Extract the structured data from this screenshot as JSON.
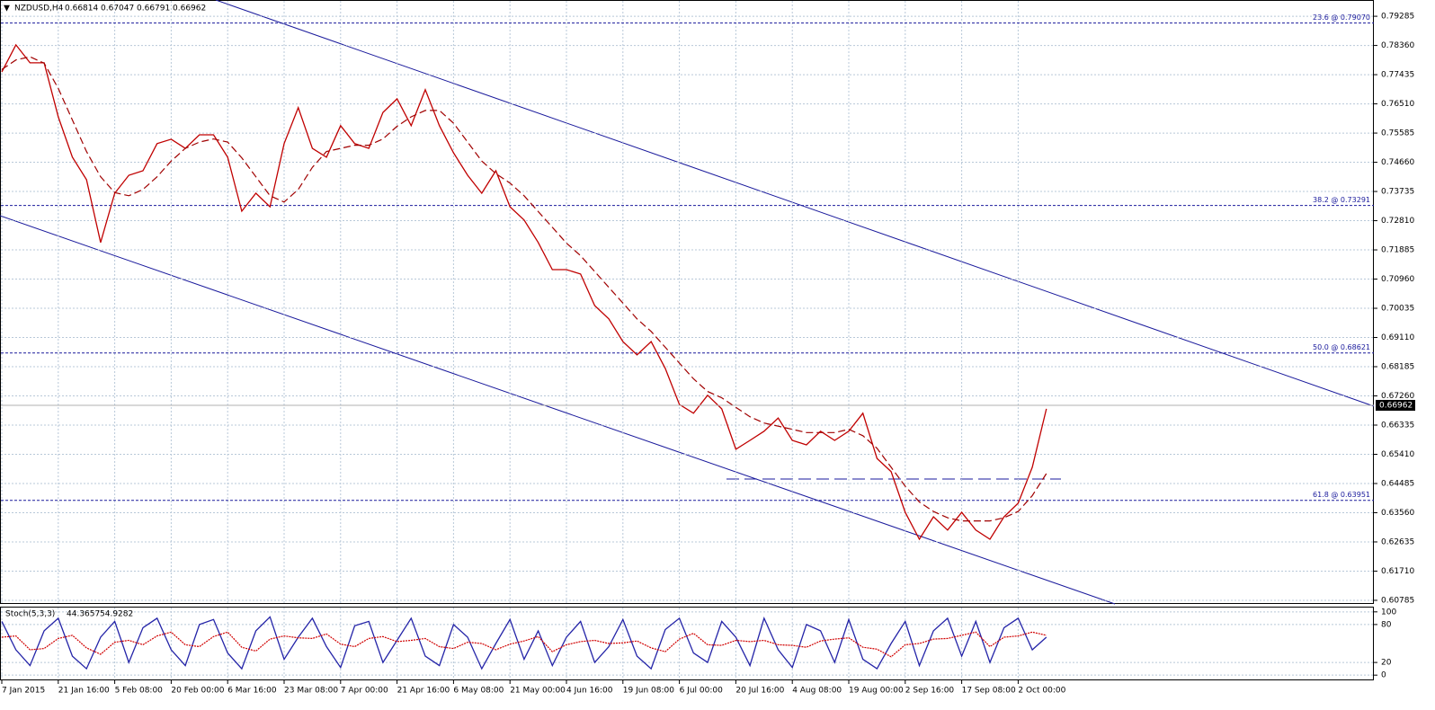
{
  "chart_data": [
    {
      "type": "line",
      "title": "NZDUSD,H4",
      "ohlc": [
        0.66814,
        0.67047,
        0.66791,
        0.66962
      ],
      "categories": [
        "7 Jan 2015",
        null,
        null,
        null,
        "21 Jan 16:00",
        null,
        null,
        null,
        "5 Feb 08:00",
        null,
        null,
        null,
        "20 Feb 00:00",
        null,
        null,
        null,
        "6 Mar 16:00",
        null,
        null,
        null,
        "23 Mar 08:00",
        null,
        null,
        null,
        "7 Apr 00:00",
        null,
        null,
        null,
        "21 Apr 16:00",
        null,
        null,
        null,
        "6 May 08:00",
        null,
        null,
        null,
        "21 May 00:00",
        null,
        null,
        null,
        "4 Jun 16:00",
        null,
        null,
        null,
        "19 Jun 08:00",
        null,
        null,
        null,
        "6 Jul 00:00",
        null,
        null,
        null,
        "20 Jul 16:00",
        null,
        null,
        null,
        "4 Aug 08:00",
        null,
        null,
        null,
        "19 Aug 00:00",
        null,
        null,
        null,
        "2 Sep 16:00",
        null,
        null,
        null,
        "17 Sep 08:00",
        null,
        null,
        null,
        "2 Oct 00:00",
        null,
        null
      ],
      "series": [
        {
          "color": "#c00000",
          "values": [
            0.7752,
            0.7838,
            0.7781,
            0.7781,
            0.761,
            0.7482,
            0.7411,
            0.7212,
            0.7368,
            0.7425,
            0.7439,
            0.7525,
            0.7539,
            0.751,
            0.7553,
            0.7553,
            0.7482,
            0.7311,
            0.7368,
            0.7325,
            0.7525,
            0.7639,
            0.751,
            0.7482,
            0.7582,
            0.7525,
            0.751,
            0.7624,
            0.7667,
            0.7582,
            0.7696,
            0.7582,
            0.7496,
            0.7425,
            0.7368,
            0.7439,
            0.7325,
            0.7283,
            0.7212,
            0.7126,
            0.7126,
            0.7112,
            0.7012,
            0.697,
            0.6898,
            0.6856,
            0.6898,
            0.6813,
            0.6699,
            0.6671,
            0.6728,
            0.6685,
            0.6557,
            0.6585,
            0.6614,
            0.6656,
            0.6585,
            0.6571,
            0.6614,
            0.6585,
            0.6614,
            0.6671,
            0.6528,
            0.6486,
            0.6357,
            0.6272,
            0.6343,
            0.6301,
            0.6357,
            0.6301,
            0.6272,
            0.6343,
            0.6386,
            0.65,
            0.6685
          ]
        },
        {
          "color": "#a00000",
          "dashed": true,
          "values": [
            0.776,
            0.779,
            0.78,
            0.778,
            0.77,
            0.76,
            0.75,
            0.742,
            0.737,
            0.736,
            0.738,
            0.742,
            0.747,
            0.751,
            0.753,
            0.754,
            0.753,
            0.748,
            0.742,
            0.736,
            0.734,
            0.738,
            0.745,
            0.75,
            0.751,
            0.752,
            0.752,
            0.754,
            0.758,
            0.761,
            0.763,
            0.763,
            0.759,
            0.753,
            0.747,
            0.743,
            0.74,
            0.736,
            0.731,
            0.726,
            0.721,
            0.717,
            0.712,
            0.707,
            0.702,
            0.697,
            0.693,
            0.688,
            0.683,
            0.678,
            0.674,
            0.672,
            0.669,
            0.666,
            0.664,
            0.663,
            0.662,
            0.661,
            0.661,
            0.661,
            0.662,
            0.66,
            0.656,
            0.65,
            0.644,
            0.639,
            0.636,
            0.634,
            0.633,
            0.633,
            0.633,
            0.634,
            0.636,
            0.641,
            0.648
          ]
        }
      ],
      "ylim": [
        0.6067,
        0.798
      ],
      "yticks": [
        0.79285,
        {
          "value": 0.7836,
          "label": "0.78360"
        },
        0.77435,
        {
          "value": 0.7651,
          "label": "0.76510"
        },
        0.75585,
        {
          "value": 0.7466,
          "label": "0.74660"
        },
        0.73735,
        {
          "value": 0.7281,
          "label": "0.72810"
        },
        0.71885,
        {
          "value": 0.7096,
          "label": "0.70960"
        },
        0.70035,
        {
          "value": 0.6911,
          "label": "0.69110"
        },
        0.68185,
        {
          "value": 0.6726,
          "label": "0.67260"
        },
        0.66335,
        {
          "value": 0.6541,
          "label": "0.65410"
        },
        0.64485,
        {
          "value": 0.6356,
          "label": "0.63560"
        },
        0.62635,
        {
          "value": 0.6171,
          "label": "0.61710"
        },
        0.60785
      ],
      "fib_levels": [
        {
          "value": 0.7907,
          "label": "23.6 @ 0.79070"
        },
        {
          "value": 0.73291,
          "label": "38.2 @ 0.73291"
        },
        {
          "value": 0.68621,
          "label": "50.0 @ 0.68621"
        },
        {
          "value": 0.63951,
          "label": "61.8 @ 0.63951"
        }
      ],
      "last_price": 0.66962,
      "grid": true
    },
    {
      "type": "line",
      "title": "Stoch(5,3,3)",
      "current": [
        44.3657,
        54.9282
      ],
      "series": [
        {
          "color": "#2424a8",
          "values": [
            85,
            40,
            15,
            70,
            90,
            30,
            10,
            60,
            85,
            20,
            75,
            90,
            40,
            15,
            80,
            88,
            35,
            10,
            70,
            92,
            25,
            60,
            90,
            45,
            12,
            78,
            85,
            20,
            55,
            90,
            30,
            15,
            80,
            60,
            10,
            50,
            88,
            25,
            70,
            15,
            60,
            85,
            20,
            45,
            88,
            30,
            10,
            72,
            90,
            35,
            20,
            85,
            60,
            15,
            90,
            40,
            12,
            80,
            70,
            20,
            88,
            25,
            10,
            50,
            85,
            15,
            70,
            90,
            30,
            85,
            20,
            75,
            90,
            40,
            60
          ]
        },
        {
          "color": "#d00000",
          "dashed": true,
          "values": [
            60,
            62,
            40,
            42,
            58,
            63,
            43,
            33,
            52,
            55,
            48,
            62,
            68,
            48,
            45,
            61,
            68,
            44,
            38,
            57,
            62,
            59,
            58,
            65,
            49,
            45,
            58,
            61,
            53,
            55,
            58,
            45,
            42,
            52,
            50,
            40,
            49,
            54,
            61,
            37,
            48,
            53,
            55,
            50,
            51,
            54,
            43,
            37,
            57,
            66,
            48,
            47,
            55,
            53,
            55,
            48,
            47,
            44,
            54,
            57,
            59,
            44,
            41,
            29,
            48,
            50,
            57,
            58,
            63,
            68,
            45,
            60,
            62,
            68,
            63
          ]
        }
      ],
      "ylim": [
        -4,
        104
      ],
      "yticks": [
        0,
        20,
        80,
        100
      ],
      "grid": true
    }
  ]
}
